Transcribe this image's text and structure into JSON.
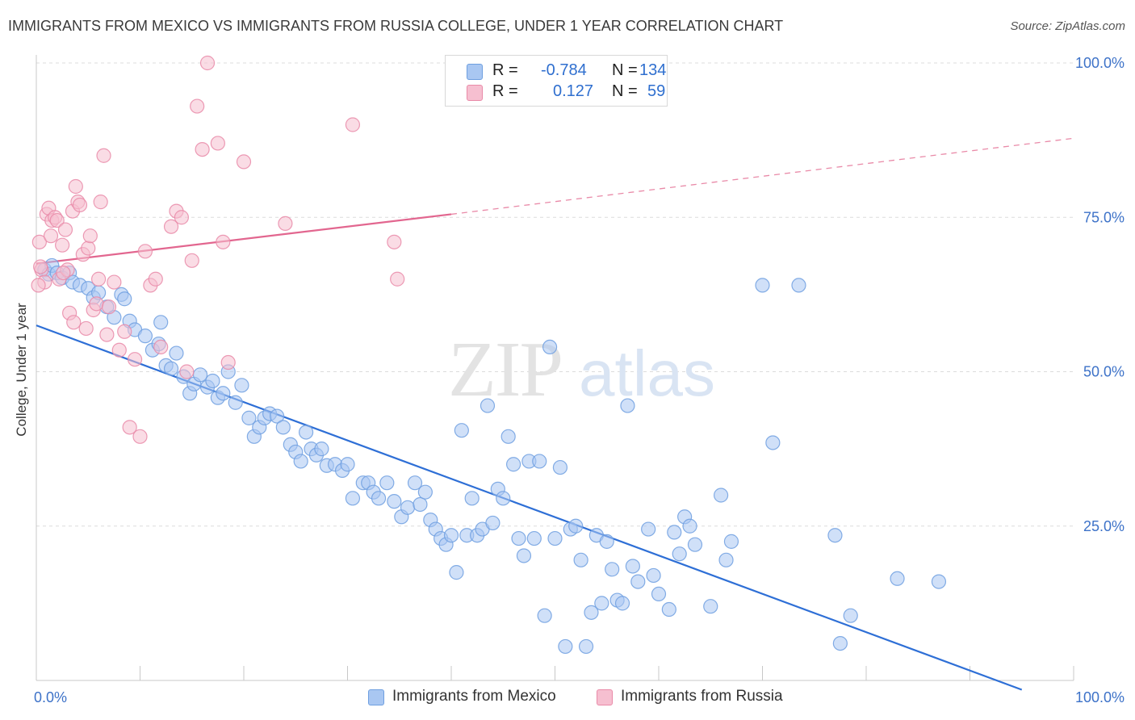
{
  "title": "IMMIGRANTS FROM MEXICO VS IMMIGRANTS FROM RUSSIA COLLEGE, UNDER 1 YEAR CORRELATION CHART",
  "source": "Source: ZipAtlas.com",
  "watermark": {
    "zip": "ZIP",
    "atlas": "atlas"
  },
  "legend": {
    "rows": [
      {
        "r_label": "R = ",
        "r_value": "-0.784",
        "n_label": "N = ",
        "n_value": "134",
        "color": "#a9c7f2",
        "border": "#6e9fe0"
      },
      {
        "r_label": "R = ",
        "r_value": "0.127",
        "n_label": "N = ",
        "n_value": "59",
        "color": "#f6bfd0",
        "border": "#e98aa8"
      }
    ]
  },
  "bottom_legend": [
    {
      "label": "Immigrants from Mexico",
      "color": "#a9c7f2",
      "border": "#6e9fe0"
    },
    {
      "label": "Immigrants from Russia",
      "color": "#f6bfd0",
      "border": "#e98aa8"
    }
  ],
  "chart_data": {
    "type": "scatter",
    "title": "IMMIGRANTS FROM MEXICO VS IMMIGRANTS FROM RUSSIA COLLEGE, UNDER 1 YEAR CORRELATION CHART",
    "xlabel": "",
    "ylabel": "College, Under 1 year",
    "xlim": [
      0,
      100
    ],
    "ylim": [
      0,
      100
    ],
    "x_tick_labels": [
      "0.0%",
      "100.0%"
    ],
    "y_tick_labels": [
      "25.0%",
      "50.0%",
      "75.0%",
      "100.0%"
    ],
    "y_ticks": [
      25,
      50,
      75,
      100
    ],
    "grid": true,
    "legend_placement": "top-center",
    "series": [
      {
        "name": "Immigrants from Mexico",
        "color": "#6e9fe0",
        "fill": "#a9c7f2",
        "trend": {
          "x": [
            0,
            95
          ],
          "y": [
            57.5,
            -1.5
          ],
          "dashed_from": null
        },
        "points": [
          [
            0.8,
            66.5
          ],
          [
            1.2,
            65.8
          ],
          [
            1.5,
            67.2
          ],
          [
            2.0,
            66.0
          ],
          [
            2.5,
            65.2
          ],
          [
            3.2,
            66.0
          ],
          [
            3.5,
            64.5
          ],
          [
            4.2,
            64.0
          ],
          [
            5.0,
            63.5
          ],
          [
            5.5,
            62.0
          ],
          [
            6.0,
            62.8
          ],
          [
            6.8,
            60.5
          ],
          [
            7.5,
            58.8
          ],
          [
            8.2,
            62.5
          ],
          [
            8.5,
            61.8
          ],
          [
            9.0,
            58.2
          ],
          [
            9.5,
            56.8
          ],
          [
            10.5,
            55.8
          ],
          [
            11.2,
            53.5
          ],
          [
            11.8,
            54.5
          ],
          [
            12.0,
            58.0
          ],
          [
            12.5,
            51.0
          ],
          [
            13.0,
            50.5
          ],
          [
            13.5,
            53.0
          ],
          [
            14.2,
            49.2
          ],
          [
            14.8,
            46.5
          ],
          [
            15.2,
            48.0
          ],
          [
            15.8,
            49.5
          ],
          [
            16.5,
            47.5
          ],
          [
            17.0,
            48.5
          ],
          [
            17.5,
            45.8
          ],
          [
            18.0,
            46.5
          ],
          [
            18.5,
            50.0
          ],
          [
            19.2,
            45.0
          ],
          [
            19.8,
            47.8
          ],
          [
            20.5,
            42.5
          ],
          [
            21.0,
            39.5
          ],
          [
            21.5,
            41.0
          ],
          [
            22.0,
            42.5
          ],
          [
            22.5,
            43.2
          ],
          [
            23.2,
            42.8
          ],
          [
            23.8,
            41.0
          ],
          [
            24.5,
            38.2
          ],
          [
            25.0,
            37.0
          ],
          [
            25.5,
            35.5
          ],
          [
            26.0,
            40.2
          ],
          [
            26.5,
            37.5
          ],
          [
            27.0,
            36.5
          ],
          [
            27.5,
            37.5
          ],
          [
            28.0,
            34.8
          ],
          [
            28.8,
            35.0
          ],
          [
            29.5,
            34.0
          ],
          [
            30.0,
            35.0
          ],
          [
            30.5,
            29.5
          ],
          [
            31.5,
            32.0
          ],
          [
            32.0,
            32.0
          ],
          [
            32.5,
            30.5
          ],
          [
            33.0,
            29.5
          ],
          [
            33.8,
            32.0
          ],
          [
            34.5,
            29.0
          ],
          [
            35.2,
            26.5
          ],
          [
            35.8,
            28.0
          ],
          [
            36.5,
            32.0
          ],
          [
            37.0,
            28.5
          ],
          [
            37.5,
            30.5
          ],
          [
            38.0,
            26.0
          ],
          [
            38.5,
            24.5
          ],
          [
            39.0,
            23.0
          ],
          [
            39.5,
            22.0
          ],
          [
            40.0,
            23.5
          ],
          [
            40.5,
            17.5
          ],
          [
            41.0,
            40.5
          ],
          [
            41.5,
            23.5
          ],
          [
            42.0,
            29.5
          ],
          [
            42.5,
            23.5
          ],
          [
            43.0,
            24.5
          ],
          [
            43.5,
            44.5
          ],
          [
            44.0,
            25.5
          ],
          [
            44.5,
            31.0
          ],
          [
            45.0,
            29.5
          ],
          [
            45.5,
            39.5
          ],
          [
            46.0,
            35.0
          ],
          [
            46.5,
            23.0
          ],
          [
            47.0,
            20.2
          ],
          [
            47.5,
            35.5
          ],
          [
            48.0,
            23.0
          ],
          [
            48.5,
            35.5
          ],
          [
            49.0,
            10.5
          ],
          [
            49.5,
            54.0
          ],
          [
            50.0,
            23.0
          ],
          [
            50.5,
            34.5
          ],
          [
            51.0,
            5.5
          ],
          [
            51.5,
            24.5
          ],
          [
            52.0,
            25.0
          ],
          [
            52.5,
            19.5
          ],
          [
            53.0,
            5.5
          ],
          [
            53.5,
            11.0
          ],
          [
            54.0,
            23.5
          ],
          [
            54.5,
            12.5
          ],
          [
            55.0,
            22.5
          ],
          [
            55.5,
            18.0
          ],
          [
            56.0,
            13.0
          ],
          [
            56.5,
            12.5
          ],
          [
            57.0,
            44.5
          ],
          [
            57.5,
            18.5
          ],
          [
            58.0,
            16.0
          ],
          [
            59.0,
            24.5
          ],
          [
            59.5,
            17.0
          ],
          [
            60.0,
            14.0
          ],
          [
            61.0,
            11.5
          ],
          [
            61.5,
            24.0
          ],
          [
            62.0,
            20.5
          ],
          [
            62.5,
            26.5
          ],
          [
            63.0,
            25.0
          ],
          [
            63.5,
            22.0
          ],
          [
            65.0,
            12.0
          ],
          [
            66.0,
            30.0
          ],
          [
            66.5,
            19.5
          ],
          [
            67.0,
            22.5
          ],
          [
            70.0,
            64.0
          ],
          [
            71.0,
            38.5
          ],
          [
            73.5,
            64.0
          ],
          [
            77.0,
            23.5
          ],
          [
            77.5,
            6.0
          ],
          [
            78.5,
            10.5
          ],
          [
            83.0,
            16.5
          ],
          [
            87.0,
            16.0
          ]
        ]
      },
      {
        "name": "Immigrants from Russia",
        "color": "#e98aa8",
        "fill": "#f6bfd0",
        "trend": {
          "x": [
            0,
            40
          ],
          "y": [
            67.5,
            75.5
          ],
          "dashed_to": [
            100,
            87.8
          ]
        },
        "points": [
          [
            0.3,
            71.0
          ],
          [
            0.5,
            66.5
          ],
          [
            0.8,
            64.5
          ],
          [
            1.0,
            75.5
          ],
          [
            1.2,
            76.5
          ],
          [
            1.5,
            74.5
          ],
          [
            1.8,
            75.0
          ],
          [
            2.0,
            74.5
          ],
          [
            2.2,
            65.0
          ],
          [
            2.5,
            70.5
          ],
          [
            2.8,
            73.0
          ],
          [
            3.0,
            66.5
          ],
          [
            3.2,
            59.5
          ],
          [
            3.5,
            76.0
          ],
          [
            3.8,
            80.0
          ],
          [
            4.0,
            77.5
          ],
          [
            4.2,
            77.0
          ],
          [
            4.5,
            69.0
          ],
          [
            4.8,
            57.0
          ],
          [
            5.0,
            70.0
          ],
          [
            5.2,
            72.0
          ],
          [
            5.5,
            60.0
          ],
          [
            5.8,
            61.0
          ],
          [
            6.0,
            65.0
          ],
          [
            6.2,
            77.5
          ],
          [
            6.5,
            85.0
          ],
          [
            6.8,
            56.0
          ],
          [
            7.0,
            60.5
          ],
          [
            7.5,
            64.5
          ],
          [
            8.0,
            53.5
          ],
          [
            8.5,
            56.5
          ],
          [
            9.0,
            41.0
          ],
          [
            9.5,
            52.0
          ],
          [
            10.0,
            39.5
          ],
          [
            10.5,
            69.5
          ],
          [
            11.0,
            64.0
          ],
          [
            11.5,
            65.0
          ],
          [
            12.0,
            54.0
          ],
          [
            13.0,
            73.5
          ],
          [
            13.5,
            76.0
          ],
          [
            14.0,
            75.0
          ],
          [
            14.5,
            50.0
          ],
          [
            15.0,
            68.0
          ],
          [
            15.5,
            93.0
          ],
          [
            16.0,
            86.0
          ],
          [
            16.5,
            100.0
          ],
          [
            17.5,
            87.0
          ],
          [
            18.0,
            71.0
          ],
          [
            18.5,
            51.5
          ],
          [
            20.0,
            84.0
          ],
          [
            24.0,
            74.0
          ],
          [
            30.5,
            90.0
          ],
          [
            34.5,
            71.0
          ],
          [
            34.8,
            65.0
          ],
          [
            0.2,
            64.0
          ],
          [
            0.4,
            67.0
          ],
          [
            1.4,
            72.0
          ],
          [
            2.6,
            66.0
          ],
          [
            3.6,
            58.0
          ]
        ]
      }
    ]
  }
}
